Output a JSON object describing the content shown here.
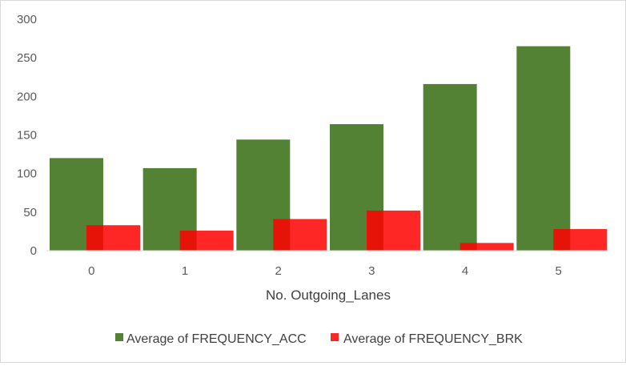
{
  "chart_data": {
    "type": "bar",
    "title": "",
    "xlabel": "No. Outgoing_Lanes",
    "ylabel": "",
    "categories": [
      "0",
      "1",
      "2",
      "3",
      "4",
      "5"
    ],
    "ylim": [
      0,
      300
    ],
    "yticks": [
      "0",
      "50",
      "100",
      "150",
      "200",
      "250",
      "300"
    ],
    "grid": false,
    "legend_position": "bottom",
    "series": [
      {
        "name": "Average of FREQUENCY_ACC",
        "color": "#548235",
        "values": [
          120,
          107,
          144,
          164,
          216,
          265
        ]
      },
      {
        "name": "Average of FREQUENCY_BRK",
        "color": "#ff0000",
        "opacity": 0.85,
        "values": [
          33,
          26,
          41,
          52,
          10,
          28
        ]
      }
    ]
  }
}
